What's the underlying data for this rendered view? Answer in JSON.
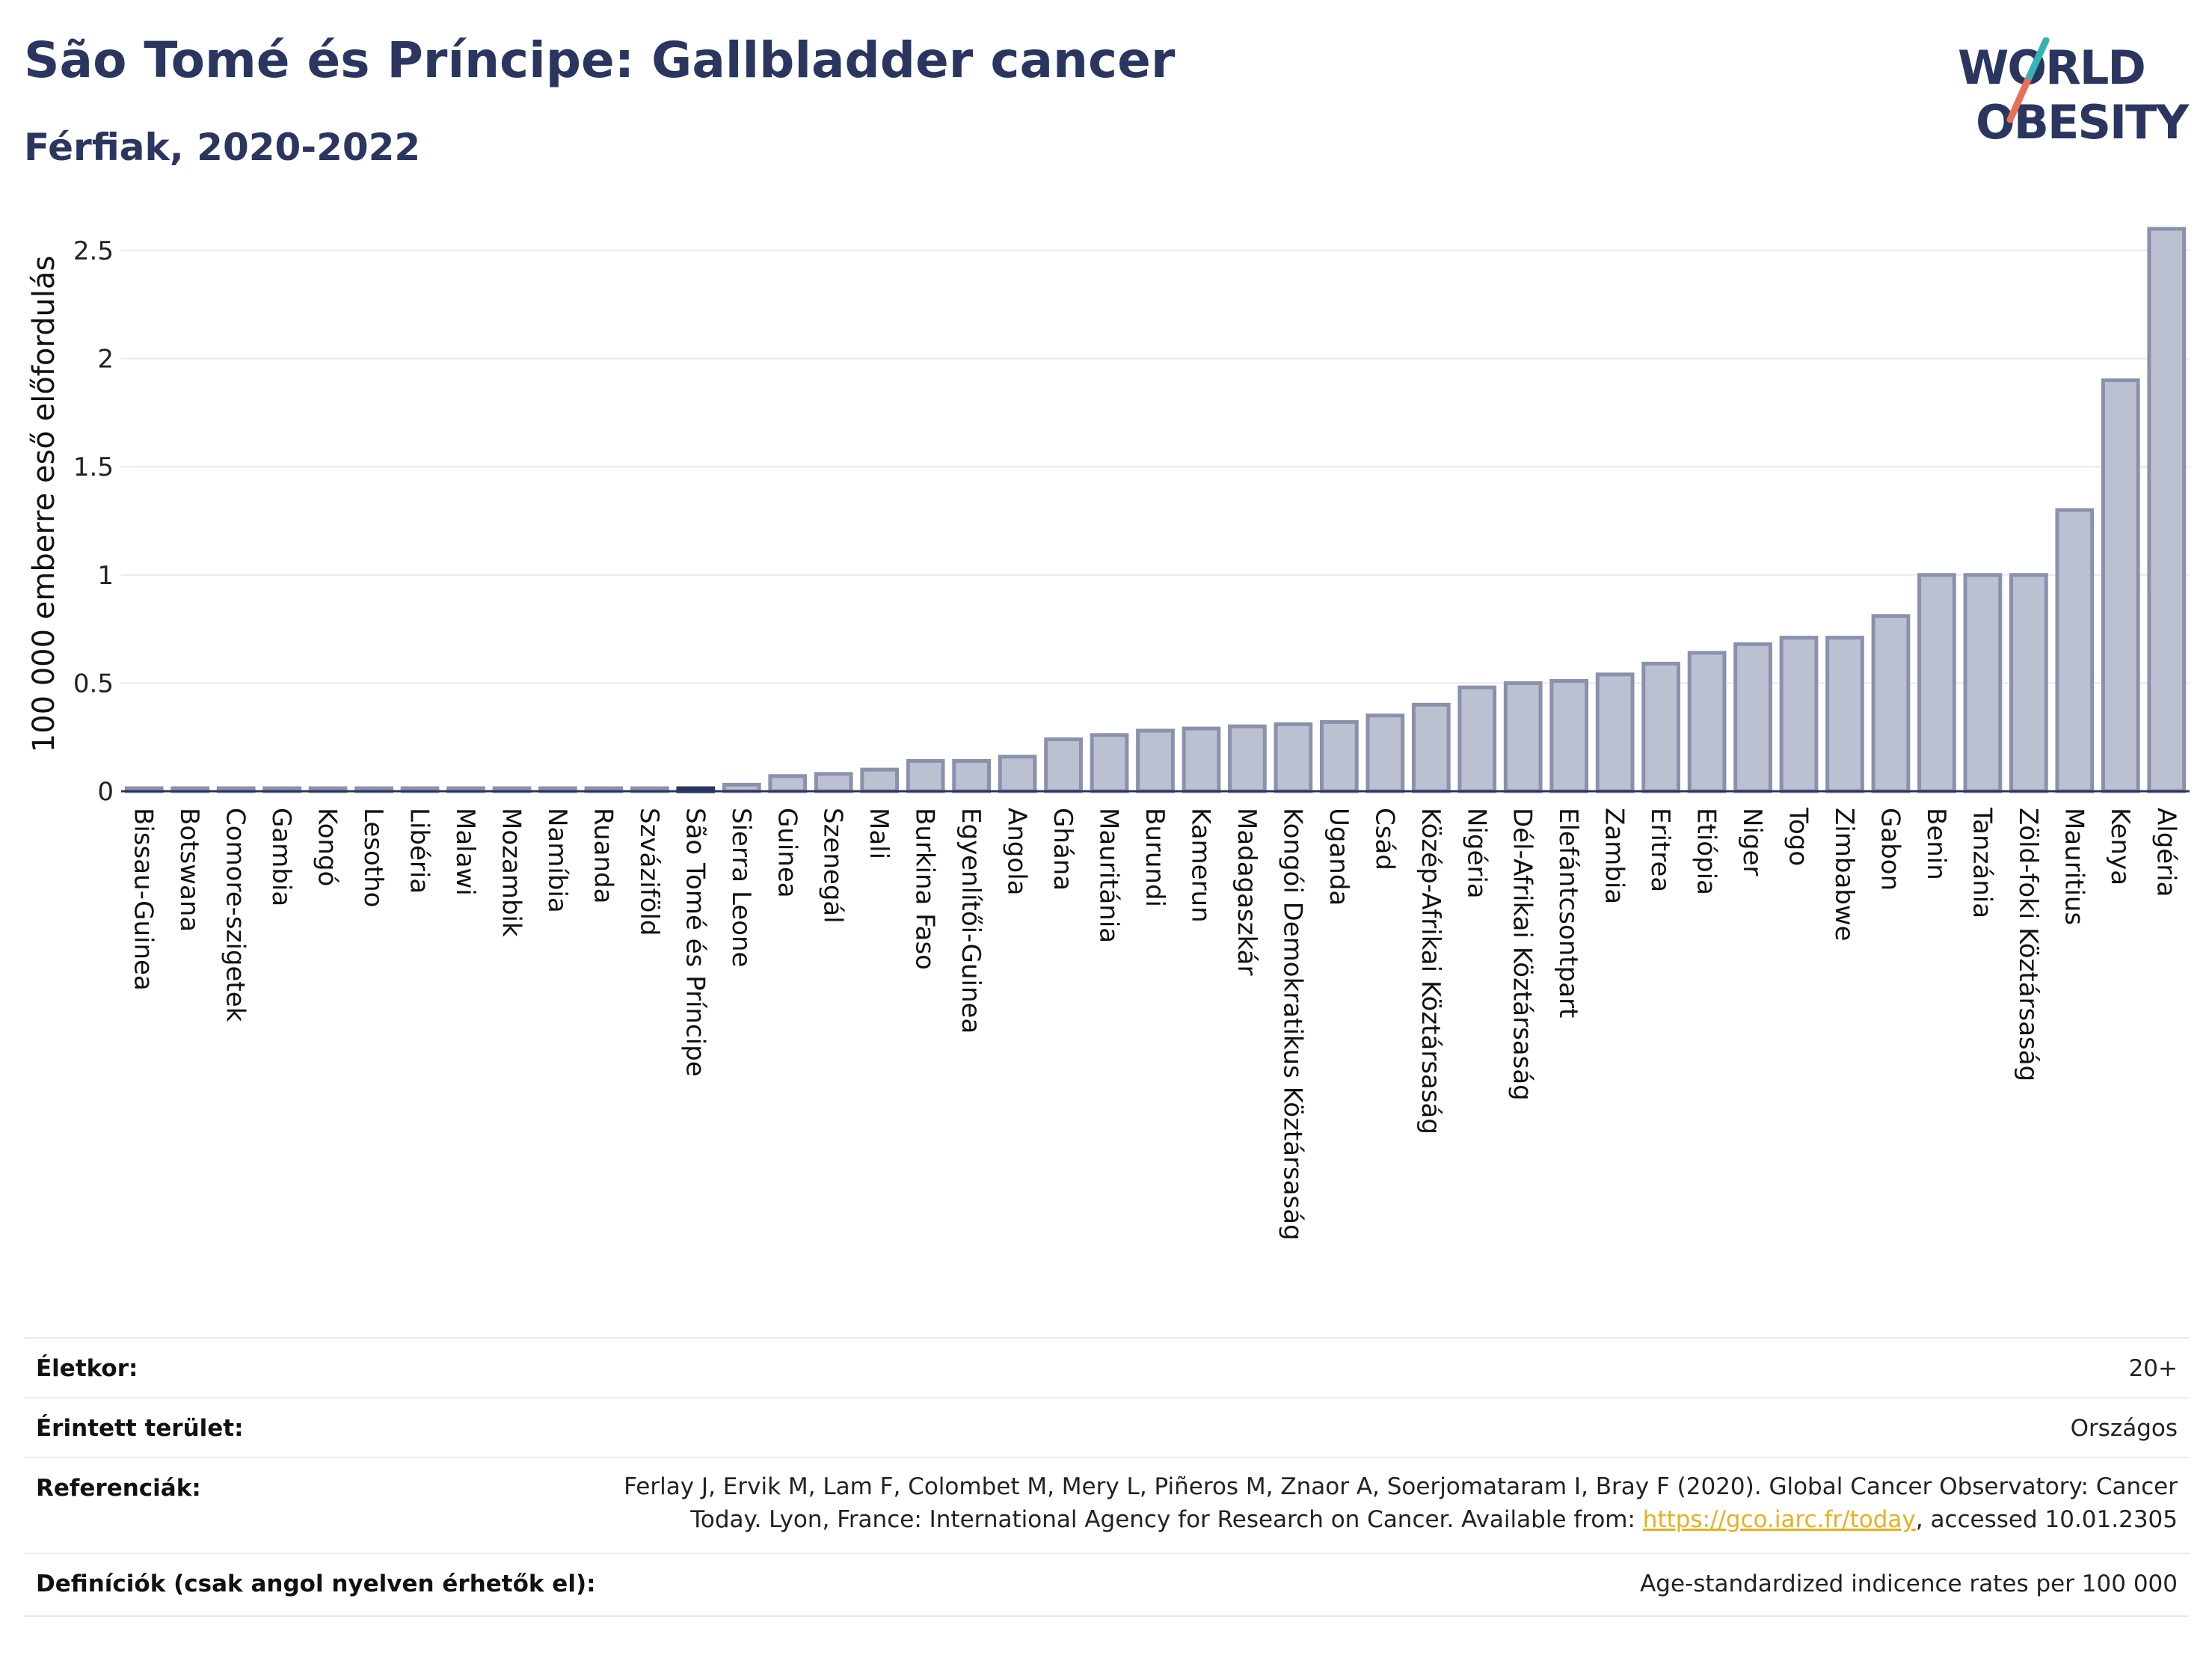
{
  "header": {
    "title": "São Tomé és Príncipe: Gallbladder cancer",
    "subtitle": "Férfiak, 2020-2022",
    "logo_line1": "WORLD",
    "logo_line2": "OBESITY"
  },
  "chart_data": {
    "type": "bar",
    "ylabel": "100 000 emberre eső előfordulás",
    "xlabel": "",
    "ylim": [
      0,
      2.6
    ],
    "yticks": [
      0,
      0.5,
      1,
      1.5,
      2,
      2.5
    ],
    "ytick_labels": [
      "0",
      "0.5",
      "1",
      "1.5",
      "2",
      "2.5"
    ],
    "grid": true,
    "highlight": "São Tomé és Príncipe",
    "colors": {
      "bar": "#bcc1d1",
      "bar_stroke": "#8a91ad",
      "highlight": "#2b3660",
      "grid": "#e6e9ee",
      "axis": "#2b3660"
    },
    "categories": [
      "Bissau-Guinea",
      "Botswana",
      "Comore-szigetek",
      "Gambia",
      "Kongó",
      "Lesotho",
      "Libéria",
      "Malawi",
      "Mozambik",
      "Namíbia",
      "Ruanda",
      "Szváziföld",
      "São Tomé és Príncipe",
      "Sierra Leone",
      "Guinea",
      "Szenegál",
      "Mali",
      "Burkina Faso",
      "Egyenlítői-Guinea",
      "Angola",
      "Ghána",
      "Mauritánia",
      "Burundi",
      "Kamerun",
      "Madagaszkár",
      "Kongói Demokratikus Köztársaság",
      "Uganda",
      "Csád",
      "Közép-Afrikai Köztársaság",
      "Nigéria",
      "Dél-Afrikai Köztársaság",
      "Elefántcsontpart",
      "Zambia",
      "Eritrea",
      "Etiópia",
      "Niger",
      "Togo",
      "Zimbabwe",
      "Gabon",
      "Benin",
      "Tanzánia",
      "Zöld-foki Köztársaság",
      "Mauritius",
      "Kenya",
      "Algéria"
    ],
    "values": [
      0,
      0,
      0,
      0,
      0,
      0,
      0,
      0,
      0,
      0,
      0,
      0,
      0,
      0.03,
      0.07,
      0.08,
      0.1,
      0.14,
      0.14,
      0.16,
      0.24,
      0.26,
      0.28,
      0.29,
      0.3,
      0.31,
      0.32,
      0.35,
      0.4,
      0.48,
      0.5,
      0.51,
      0.54,
      0.59,
      0.64,
      0.68,
      0.71,
      0.71,
      0.81,
      1.0,
      1.0,
      1.0,
      1.3,
      1.9,
      2.6
    ]
  },
  "info": {
    "age_label": "Életkor:",
    "age_value": "20+",
    "area_label": "Érintett terület:",
    "area_value": "Országos",
    "ref_label": "Referenciák:",
    "ref_line1": "Ferlay J, Ervik M, Lam F, Colombet M, Mery L, Piñeros M, Znaor A, Soerjomataram I, Bray F (2020). Global Cancer Observatory: Cancer",
    "ref_line2_pre": "Today. Lyon, France: International Agency for Research on Cancer. Available from: ",
    "ref_link": "https://gco.iarc.fr/today",
    "ref_line2_post": ", accessed 10.01.2305",
    "def_label": "Definíciók (csak angol nyelven érhetők el):",
    "def_value": "Age-standardized indicence rates per 100 000"
  }
}
